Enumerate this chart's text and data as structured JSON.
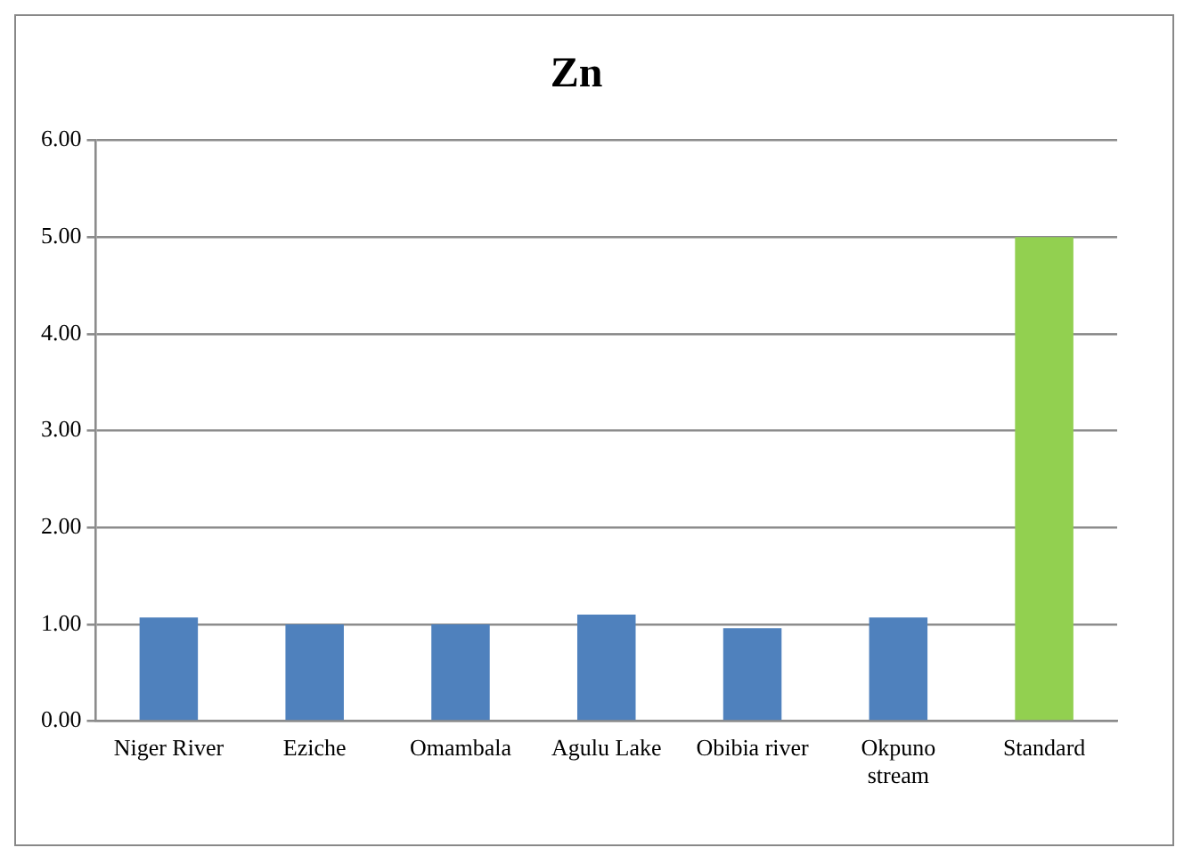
{
  "chart_data": {
    "type": "bar",
    "title": "Zn",
    "categories": [
      "Niger River",
      "Eziche",
      "Omambala",
      "Agulu Lake",
      "Obibia river",
      "Okpuno stream",
      "Standard"
    ],
    "values": [
      1.07,
      1.0,
      1.0,
      1.1,
      0.96,
      1.07,
      5.0
    ],
    "colors": [
      "#4f81bd",
      "#4f81bd",
      "#4f81bd",
      "#4f81bd",
      "#4f81bd",
      "#4f81bd",
      "#92d050"
    ],
    "ylim": [
      0,
      6
    ],
    "yticks": [
      {
        "value": 0,
        "label": "0.00"
      },
      {
        "value": 1,
        "label": "1.00"
      },
      {
        "value": 2,
        "label": "2.00"
      },
      {
        "value": 3,
        "label": "3.00"
      },
      {
        "value": 4,
        "label": "4.00"
      },
      {
        "value": 5,
        "label": "5.00"
      },
      {
        "value": 6,
        "label": "6.00"
      }
    ],
    "grid": "y",
    "legend": false
  }
}
